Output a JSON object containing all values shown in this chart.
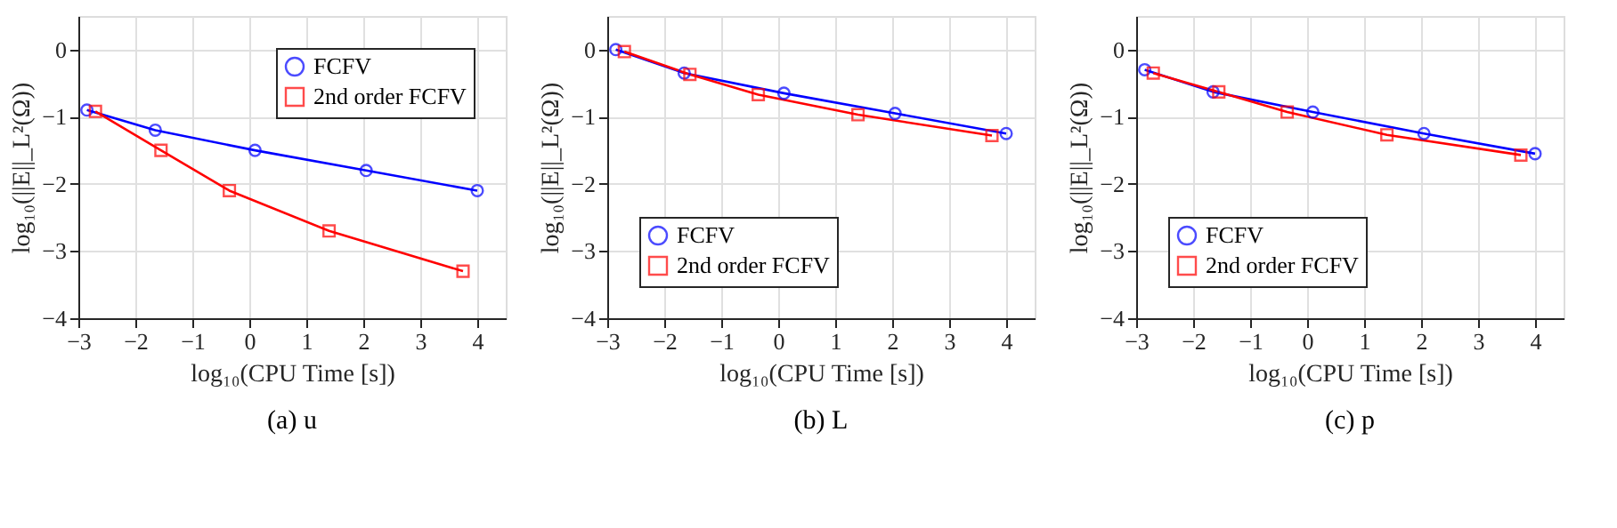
{
  "chart_data": [
    {
      "type": "line",
      "title": "(a) u",
      "xlabel": "log₁₀(CPU Time [s])",
      "ylabel": "log₁₀(||E||_L²(Ω))",
      "xlim": [
        -3,
        4.5
      ],
      "ylim": [
        -4,
        0.5
      ],
      "xticks": [
        -3,
        -2,
        -1,
        0,
        1,
        2,
        3,
        4
      ],
      "yticks": [
        -4,
        -3,
        -2,
        -1,
        0
      ],
      "grid": true,
      "legend": "top right",
      "series": [
        {
          "name": "FCFV",
          "color": "#0000ff",
          "marker": "circle",
          "x": [
            -2.85,
            -1.65,
            0.1,
            2.05,
            4.0
          ],
          "values": [
            -0.9,
            -1.2,
            -1.5,
            -1.8,
            -2.1
          ]
        },
        {
          "name": "2nd order FCFV",
          "color": "#ff0000",
          "marker": "square",
          "x": [
            -2.7,
            -1.55,
            -0.35,
            1.4,
            3.75
          ],
          "values": [
            -0.92,
            -1.5,
            -2.1,
            -2.7,
            -3.3
          ]
        }
      ]
    },
    {
      "type": "line",
      "title": "(b) L",
      "xlabel": "log₁₀(CPU Time [s])",
      "ylabel": "log₁₀(||E||_L²(Ω))",
      "xlim": [
        -3,
        4.5
      ],
      "ylim": [
        -4,
        0.5
      ],
      "xticks": [
        -3,
        -2,
        -1,
        0,
        1,
        2,
        3,
        4
      ],
      "yticks": [
        -4,
        -3,
        -2,
        -1,
        0
      ],
      "grid": true,
      "legend": "bottom left",
      "series": [
        {
          "name": "FCFV",
          "color": "#0000ff",
          "marker": "circle",
          "x": [
            -2.85,
            -1.65,
            0.1,
            2.05,
            4.0
          ],
          "values": [
            0.0,
            -0.35,
            -0.65,
            -0.95,
            -1.25
          ]
        },
        {
          "name": "2nd order FCFV",
          "color": "#ff0000",
          "marker": "square",
          "x": [
            -2.7,
            -1.55,
            -0.35,
            1.4,
            3.75
          ],
          "values": [
            -0.03,
            -0.37,
            -0.67,
            -0.97,
            -1.28
          ]
        }
      ]
    },
    {
      "type": "line",
      "title": "(c) p",
      "xlabel": "log₁₀(CPU Time [s])",
      "ylabel": "log₁₀(||E||_L²(Ω))",
      "xlim": [
        -3,
        4.5
      ],
      "ylim": [
        -4,
        0.5
      ],
      "xticks": [
        -3,
        -2,
        -1,
        0,
        1,
        2,
        3,
        4
      ],
      "yticks": [
        -4,
        -3,
        -2,
        -1,
        0
      ],
      "grid": true,
      "legend": "bottom left",
      "series": [
        {
          "name": "FCFV",
          "color": "#0000ff",
          "marker": "circle",
          "x": [
            -2.85,
            -1.65,
            0.1,
            2.05,
            4.0
          ],
          "values": [
            -0.3,
            -0.63,
            -0.93,
            -1.25,
            -1.55
          ]
        },
        {
          "name": "2nd order FCFV",
          "color": "#ff0000",
          "marker": "square",
          "x": [
            -2.7,
            -1.55,
            -0.35,
            1.4,
            3.75
          ],
          "values": [
            -0.35,
            -0.63,
            -0.93,
            -1.27,
            -1.57
          ]
        }
      ]
    }
  ]
}
